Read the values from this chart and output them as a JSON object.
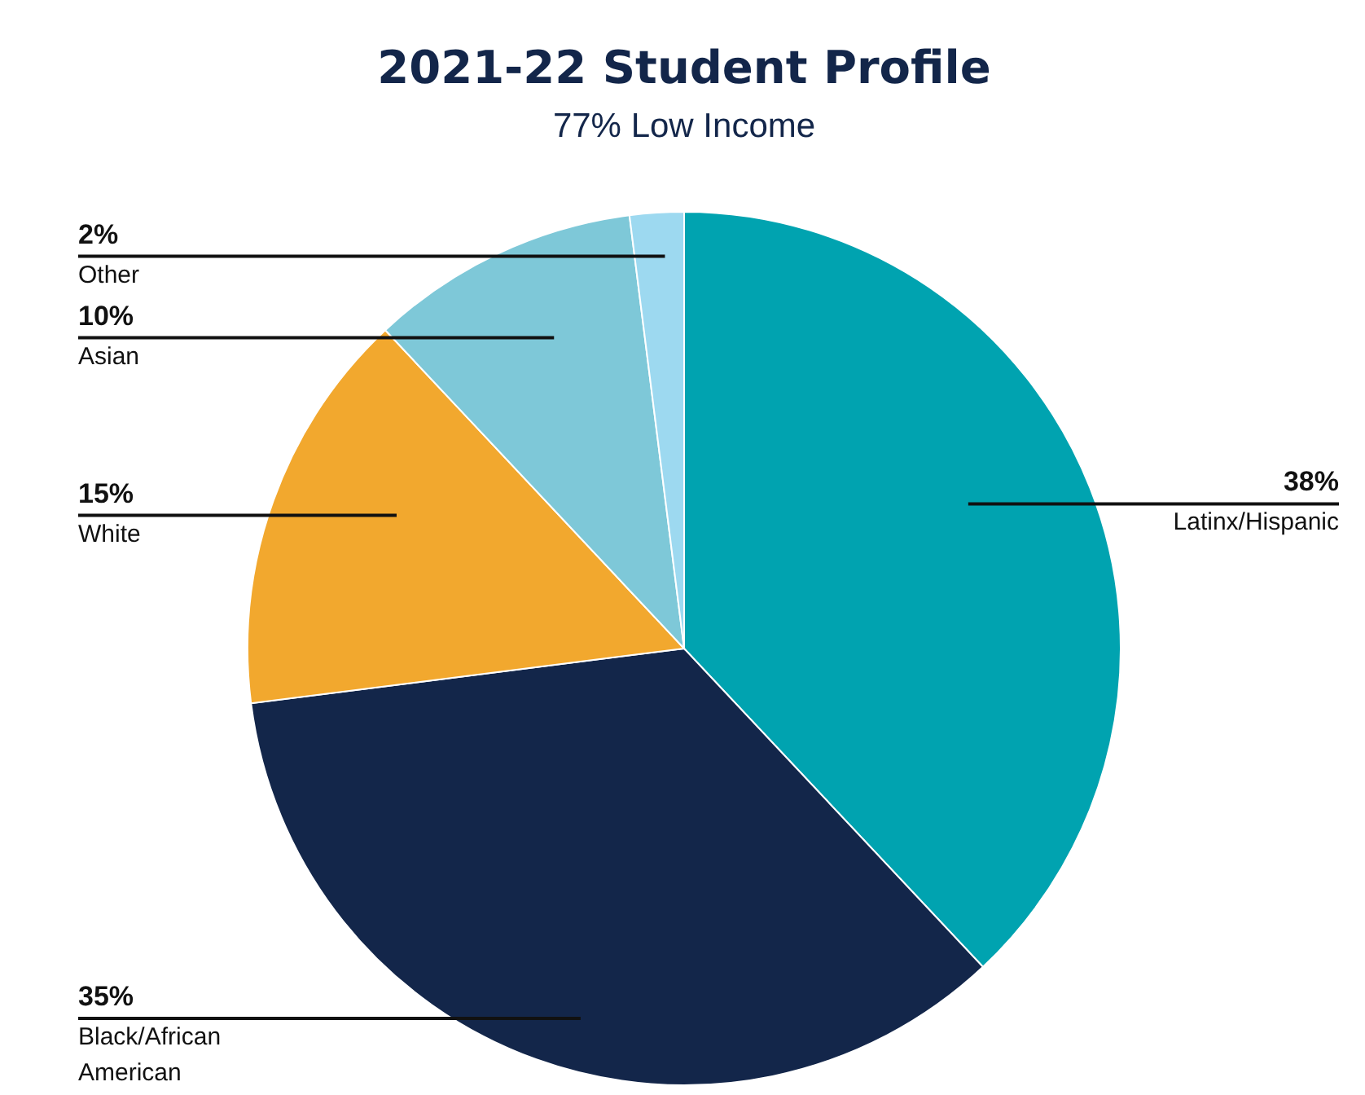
{
  "chart_data": {
    "type": "pie",
    "title": "2021-22 Student Profile",
    "subtitle": "77% Low Income",
    "categories": [
      "Latinx/Hispanic",
      "Black/African American",
      "White",
      "Asian",
      "Other"
    ],
    "values": [
      38,
      35,
      15,
      10,
      2
    ],
    "colors": [
      "#00a3b0",
      "#13264a",
      "#f2a82e",
      "#7ec8d8",
      "#9dd9f0"
    ],
    "value_labels": [
      "38%",
      "35%",
      "15%",
      "10%",
      "2%"
    ]
  }
}
